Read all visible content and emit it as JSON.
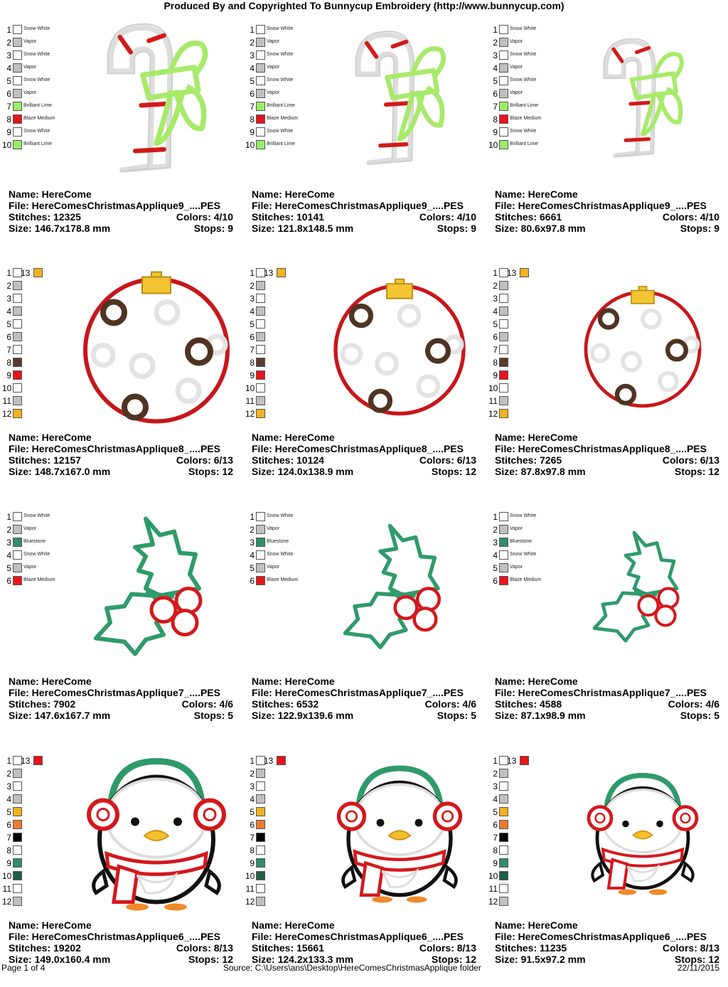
{
  "header": {
    "title": "Produced By and Copyrighted To Bunnycup Embroidery (http://www.bunnycup.com)"
  },
  "footer": {
    "page": "Page 1 of 4",
    "source": "Source: C:\\Users\\ans\\Desktop\\HereComesChristmasApplique folder",
    "date": "22/11/2015"
  },
  "colors": {
    "snow_white": "#ffffff",
    "vapor": "#c0c0c0",
    "brilliant_lime": "#99ee66",
    "blaze_medium": "#e8141a",
    "bluestone": "#2e8f6a",
    "gold": "#f3b21e",
    "brown": "#5a3a2a",
    "orange": "#f07a30",
    "black": "#000000",
    "dark_green": "#1f5e45"
  },
  "rows": [
    {
      "design": "candy-cane",
      "legend": [
        {
          "n": "1",
          "color": "#ffffff",
          "name": "Snow White"
        },
        {
          "n": "2",
          "color": "#c0c0c0",
          "name": "Vapor"
        },
        {
          "n": "3",
          "color": "#ffffff",
          "name": "Snow White"
        },
        {
          "n": "4",
          "color": "#c0c0c0",
          "name": "Vapor"
        },
        {
          "n": "5",
          "color": "#ffffff",
          "name": "Snow White"
        },
        {
          "n": "6",
          "color": "#c0c0c0",
          "name": "Vapor"
        },
        {
          "n": "7",
          "color": "#99ee66",
          "name": "Brilliant Lime"
        },
        {
          "n": "8",
          "color": "#e8141a",
          "name": "Blaze Medium"
        },
        {
          "n": "9",
          "color": "#ffffff",
          "name": "Snow White"
        },
        {
          "n": "10",
          "color": "#99ee66",
          "name": "Brilliant Lime"
        }
      ],
      "extra": null,
      "cells": [
        {
          "name": "Name: HereCome",
          "file": "File: HereComesChristmasApplique9_....PES",
          "stitches": "Stitches: 12325",
          "colors": "Colors: 4/10",
          "size": "Size: 146.7x178.8 mm",
          "stops": "Stops: 9"
        },
        {
          "name": "Name: HereCome",
          "file": "File: HereComesChristmasApplique9_....PES",
          "stitches": "Stitches: 10141",
          "colors": "Colors: 4/10",
          "size": "Size: 121.8x148.5 mm",
          "stops": "Stops: 9"
        },
        {
          "name": "Name: HereCome",
          "file": "File: HereComesChristmasApplique9_....PES",
          "stitches": "Stitches: 6661",
          "colors": "Colors: 4/10",
          "size": "Size: 80.6x97.8 mm",
          "stops": "Stops: 9"
        }
      ]
    },
    {
      "design": "ornament",
      "legend": [
        {
          "n": "1",
          "color": "#ffffff",
          "name": ""
        },
        {
          "n": "2",
          "color": "#c0c0c0",
          "name": ""
        },
        {
          "n": "3",
          "color": "#ffffff",
          "name": ""
        },
        {
          "n": "4",
          "color": "#c0c0c0",
          "name": ""
        },
        {
          "n": "5",
          "color": "#ffffff",
          "name": ""
        },
        {
          "n": "6",
          "color": "#c0c0c0",
          "name": ""
        },
        {
          "n": "7",
          "color": "#ffffff",
          "name": ""
        },
        {
          "n": "8",
          "color": "#5a3a2a",
          "name": ""
        },
        {
          "n": "9",
          "color": "#e8141a",
          "name": ""
        },
        {
          "n": "10",
          "color": "#ffffff",
          "name": ""
        },
        {
          "n": "11",
          "color": "#c0c0c0",
          "name": ""
        },
        {
          "n": "12",
          "color": "#f3b21e",
          "name": ""
        }
      ],
      "extra": {
        "n": "13",
        "color": "#f3b21e"
      },
      "cells": [
        {
          "name": "Name: HereCome",
          "file": "File: HereComesChristmasApplique8_....PES",
          "stitches": "Stitches: 12157",
          "colors": "Colors: 6/13",
          "size": "Size: 148.7x167.0 mm",
          "stops": "Stops: 12"
        },
        {
          "name": "Name: HereCome",
          "file": "File: HereComesChristmasApplique8_....PES",
          "stitches": "Stitches: 10124",
          "colors": "Colors: 6/13",
          "size": "Size: 124.0x138.9 mm",
          "stops": "Stops: 12"
        },
        {
          "name": "Name: HereCome",
          "file": "File: HereComesChristmasApplique8_....PES",
          "stitches": "Stitches: 7265",
          "colors": "Colors: 6/13",
          "size": "Size: 87.8x97.8 mm",
          "stops": "Stops: 12"
        }
      ]
    },
    {
      "design": "holly",
      "legend": [
        {
          "n": "1",
          "color": "#ffffff",
          "name": "Snow White"
        },
        {
          "n": "2",
          "color": "#c0c0c0",
          "name": "Vapor"
        },
        {
          "n": "3",
          "color": "#2e8f6a",
          "name": "Bluestone"
        },
        {
          "n": "4",
          "color": "#ffffff",
          "name": "Snow White"
        },
        {
          "n": "5",
          "color": "#c0c0c0",
          "name": "Vapor"
        },
        {
          "n": "6",
          "color": "#e8141a",
          "name": "Blaze Medium"
        }
      ],
      "extra": null,
      "cells": [
        {
          "name": "Name: HereCome",
          "file": "File: HereComesChristmasApplique7_....PES",
          "stitches": "Stitches: 7902",
          "colors": "Colors: 4/6",
          "size": "Size: 147.6x167.7 mm",
          "stops": "Stops: 5"
        },
        {
          "name": "Name: HereCome",
          "file": "File: HereComesChristmasApplique7_....PES",
          "stitches": "Stitches: 6532",
          "colors": "Colors: 4/6",
          "size": "Size: 122.9x139.6 mm",
          "stops": "Stops: 5"
        },
        {
          "name": "Name: HereCome",
          "file": "File: HereComesChristmasApplique7_....PES",
          "stitches": "Stitches: 4588",
          "colors": "Colors: 4/6",
          "size": "Size: 87.1x98.9 mm",
          "stops": "Stops: 5"
        }
      ]
    },
    {
      "design": "penguin",
      "legend": [
        {
          "n": "1",
          "color": "#ffffff",
          "name": ""
        },
        {
          "n": "2",
          "color": "#c0c0c0",
          "name": ""
        },
        {
          "n": "3",
          "color": "#ffffff",
          "name": ""
        },
        {
          "n": "4",
          "color": "#c0c0c0",
          "name": ""
        },
        {
          "n": "5",
          "color": "#f3b21e",
          "name": ""
        },
        {
          "n": "6",
          "color": "#f07a30",
          "name": ""
        },
        {
          "n": "7",
          "color": "#000000",
          "name": ""
        },
        {
          "n": "8",
          "color": "#ffffff",
          "name": ""
        },
        {
          "n": "9",
          "color": "#2e8f6a",
          "name": ""
        },
        {
          "n": "10",
          "color": "#1f5e45",
          "name": ""
        },
        {
          "n": "11",
          "color": "#ffffff",
          "name": ""
        },
        {
          "n": "12",
          "color": "#c0c0c0",
          "name": ""
        }
      ],
      "extra": {
        "n": "13",
        "color": "#e8141a"
      },
      "cells": [
        {
          "name": "Name: HereCome",
          "file": "File: HereComesChristmasApplique6_....PES",
          "stitches": "Stitches: 19202",
          "colors": "Colors: 8/13",
          "size": "Size: 149.0x160.4 mm",
          "stops": "Stops: 12"
        },
        {
          "name": "Name: HereCome",
          "file": "File: HereComesChristmasApplique6_....PES",
          "stitches": "Stitches: 15661",
          "colors": "Colors: 8/13",
          "size": "Size: 124.2x133.3 mm",
          "stops": "Stops: 12"
        },
        {
          "name": "Name: HereCome",
          "file": "File: HereComesChristmasApplique6_....PES",
          "stitches": "Stitches: 11235",
          "colors": "Colors: 8/13",
          "size": "Size: 91.5x97.2 mm",
          "stops": "Stops: 12"
        }
      ]
    }
  ]
}
